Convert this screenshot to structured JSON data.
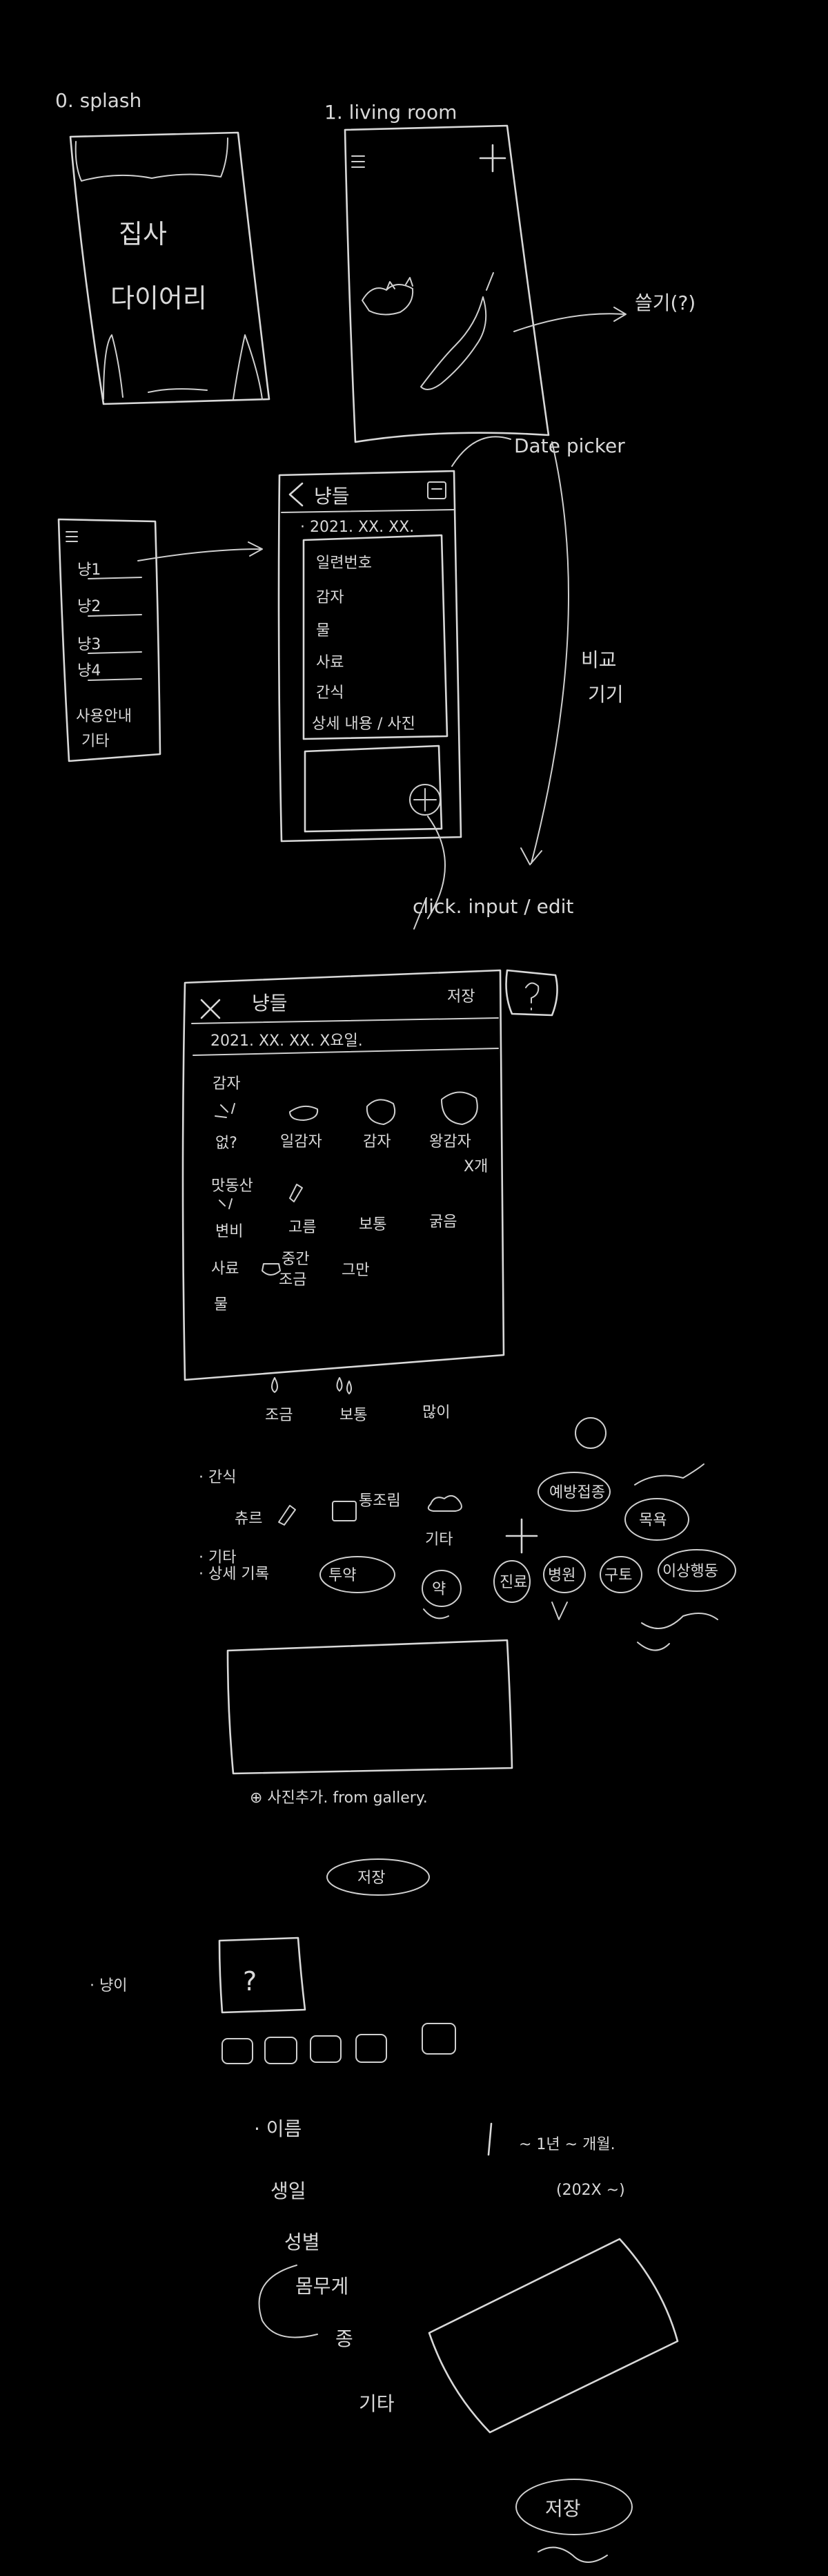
{
  "screens": {
    "splash": {
      "label": "0. splash",
      "title_line1": "집사",
      "title_line2": "다이어리"
    },
    "living_room": {
      "label": "1. living room",
      "menu_icon": "hamburger-icon",
      "add_icon": "plus-icon",
      "arrow_note": "쓸기(?)"
    },
    "menu": {
      "menu_icon": "hamburger-icon",
      "items": [
        "냥1",
        "냥2",
        "냥3",
        "냥4"
      ],
      "footer_line1": "사용안내",
      "footer_line2": "기타"
    },
    "detail": {
      "back_icon": "back-chevron-icon",
      "title": "냥들",
      "calendar_icon": "calendar-icon",
      "date": "· 2021. XX. XX.",
      "lines": [
        "일련번호",
        "감자",
        "물",
        "사료",
        "간식",
        "상세 내용 / 사진"
      ],
      "add_icon": "plus-icon"
    },
    "date_picker_note": "Date picker",
    "side_note_line1": "비교",
    "side_note_line2": "기기",
    "click_note": "click. input / edit",
    "edit": {
      "close_icon": "close-x-icon",
      "title": "냥들",
      "save_label": "저장",
      "help_icon": "question-icon",
      "date": "2021. XX. XX. X요일.",
      "section_potato": "감자",
      "potato_options": [
        "없?",
        "일감자",
        "감자",
        "왕감자"
      ],
      "potato_note": "X개",
      "section_poop": "맛동산",
      "poop_options": [
        "변비",
        "고름",
        "보통",
        "굵음"
      ],
      "section_food": "사료",
      "food_options": [
        "조금",
        "중간",
        "그만"
      ],
      "section_water": "물",
      "water_options": [
        "조금",
        "보통",
        "많이"
      ],
      "bowl_icon": "bowl-icon",
      "section_snack": "· 간식",
      "snack_options": [
        "츄르",
        "통조림",
        "기타"
      ],
      "section_other": "· 기타",
      "other_options": [
        "예방접종",
        "목욕"
      ],
      "section_record": "· 상세 기록",
      "record_options": [
        "투약",
        "약",
        "진료",
        "병원",
        "구토",
        "이상행동"
      ],
      "photo_link": "⊕ 사진추가. from gallery.",
      "save_button": "저장"
    },
    "cat_profile": {
      "label": "· 냥이",
      "photo_placeholder": "?",
      "thumb_count": 5,
      "fields": [
        "· 이름",
        "생일",
        "성별",
        "몸무게",
        "종"
      ],
      "other_label": "기타",
      "age_note": "~ 1년 ~ 개월.",
      "age_sub": "(202X ~)",
      "save_button": "저장"
    }
  }
}
